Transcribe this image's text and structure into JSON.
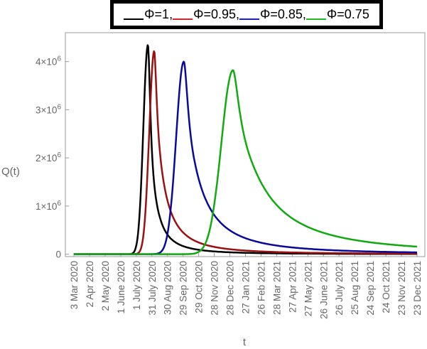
{
  "chart_data": {
    "type": "line",
    "title": "",
    "xlabel": "t",
    "ylabel": "Q(t)",
    "x_categories": [
      "3 Mar 2020",
      "2 Apr 2020",
      "2 May 2020",
      "1 June 2020",
      "1 July 2020",
      "31 July 2020",
      "30 Aug 2020",
      "29 Sep 2020",
      "29 Oct 2020",
      "28 Nov 2020",
      "28 Dec 2020",
      "27 Jan 2021",
      "26 Feb 2021",
      "28 Mar 2021",
      "27 Apr 2021",
      "27 May 2021",
      "26 June 2021",
      "26 July 2021",
      "25 Aug 2021",
      "24 Sep 2021",
      "24 Oct 2021",
      "23 Nov 2021",
      "23 Dec 2021"
    ],
    "y_ticks": [
      {
        "value": 0,
        "label": "0"
      },
      {
        "value": 1000000,
        "label": "1×10",
        "exp": "6"
      },
      {
        "value": 2000000,
        "label": "2×10",
        "exp": "6"
      },
      {
        "value": 3000000,
        "label": "3×10",
        "exp": "6"
      },
      {
        "value": 4000000,
        "label": "4×10",
        "exp": "6"
      }
    ],
    "ylim": [
      -50000,
      4600000
    ],
    "legend": [
      {
        "label": "Φ=1",
        "color": "#000000"
      },
      {
        "label": "Φ=0.95",
        "color": "#d62728"
      },
      {
        "label": "Φ=0.85",
        "color": "#1f1fbf"
      },
      {
        "label": "Φ=0.75",
        "color": "#22bb22"
      }
    ],
    "series": [
      {
        "name": "Φ=1",
        "color": "#000000",
        "peak_date_index": 4.75,
        "peak": 4350000,
        "rise_width": 0.42,
        "decay_tau": 0.55,
        "tail_ratio": 0.0
      },
      {
        "name": "Φ=0.95",
        "color": "#9b1111",
        "peak_date_index": 5.15,
        "peak": 4220000,
        "rise_width": 0.45,
        "decay_tau": 0.9,
        "tail_ratio": 0.0
      },
      {
        "name": "Φ=0.85",
        "color": "#0a0a99",
        "peak_date_index": 7.05,
        "peak": 4000000,
        "rise_width": 0.7,
        "decay_tau": 1.6,
        "tail_ratio": 0.0
      },
      {
        "name": "Φ=0.75",
        "color": "#11aa11",
        "peak_date_index": 10.2,
        "peak": 3820000,
        "rise_width": 1.05,
        "decay_tau": 3.0,
        "tail_ratio": 0.0
      }
    ]
  }
}
